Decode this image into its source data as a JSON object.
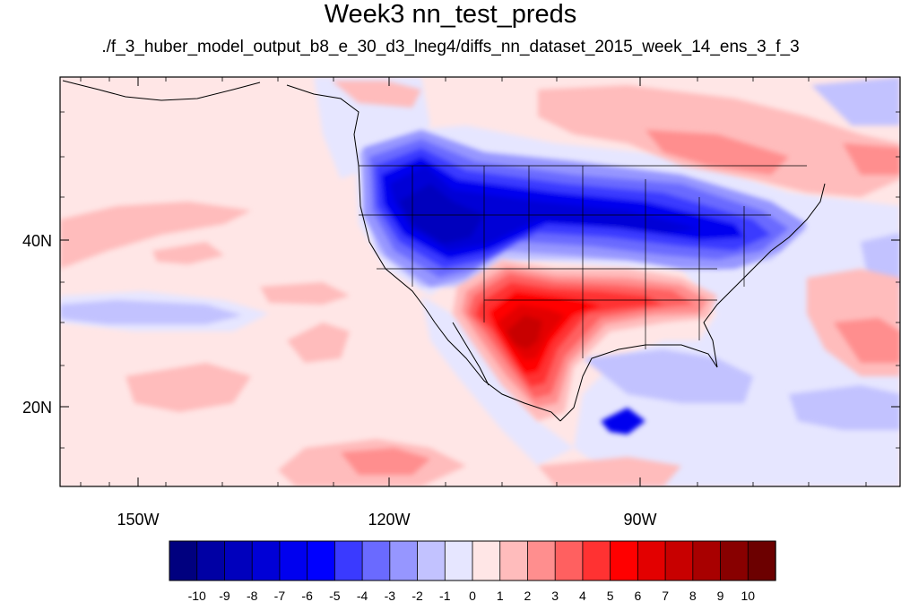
{
  "title": "Week3 nn_test_preds",
  "subtitle": "./f_3_huber_model_output_b8_e_30_d3_lneg4/diffs_nn_dataset_2015_week_14_ens_3_f_3",
  "map": {
    "lon_range": [
      -160,
      -62
    ],
    "lat_range": [
      10,
      60
    ],
    "x_ticks": [
      "150W",
      "120W",
      "90W"
    ],
    "y_ticks": [
      "40N",
      "20N"
    ]
  },
  "colorbar": {
    "labels": [
      "-10",
      "-9",
      "-8",
      "-7",
      "-6",
      "-5",
      "-4",
      "-3",
      "-2",
      "-1",
      "0",
      "1",
      "2",
      "3",
      "4",
      "5",
      "6",
      "7",
      "8",
      "9",
      "10"
    ],
    "colors": [
      "#00007f",
      "#0000a4",
      "#0000bd",
      "#0000d6",
      "#0000ef",
      "#0000ff",
      "#3a3aff",
      "#6a6aff",
      "#9696ff",
      "#c2c2ff",
      "#e6e6ff",
      "#ffe6e6",
      "#ffbcbc",
      "#ff8e8e",
      "#ff6060",
      "#ff3232",
      "#ff0000",
      "#e30000",
      "#c80000",
      "#a80000",
      "#880000",
      "#6c0000"
    ]
  }
}
